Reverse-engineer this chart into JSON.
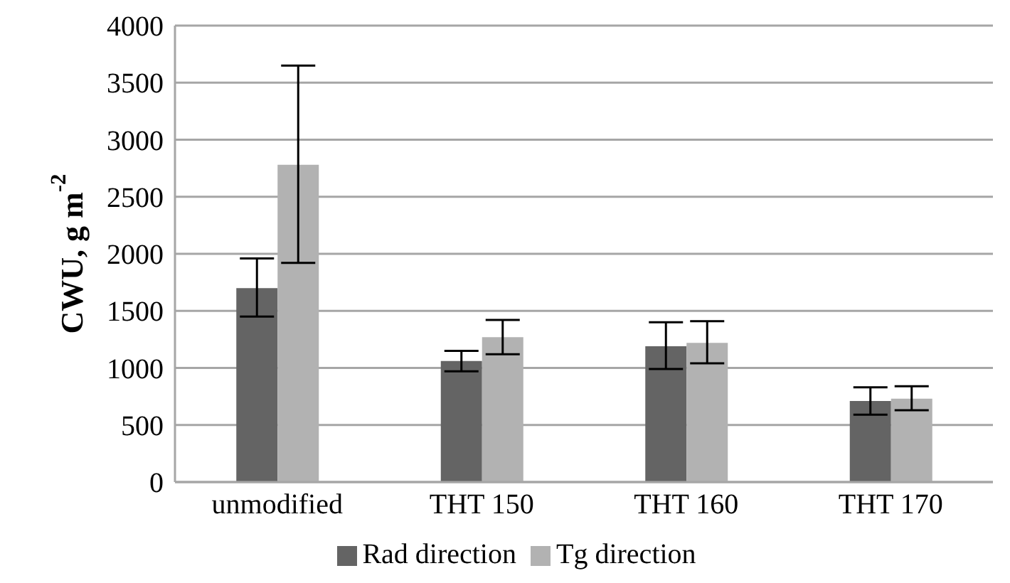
{
  "chart_data": {
    "type": "bar",
    "ylabel": "CWU, g m$^{-2}$",
    "categories": [
      "unmodified",
      "THT 150",
      "THT 160",
      "THT 170"
    ],
    "series": [
      {
        "name": "Rad direction",
        "color": "#646464",
        "values": [
          1700,
          1060,
          1190,
          710
        ],
        "errors": [
          [
            1450,
            1960
          ],
          [
            970,
            1150
          ],
          [
            990,
            1400
          ],
          [
            590,
            830
          ]
        ]
      },
      {
        "name": "Tg direction",
        "color": "#b2b2b2",
        "values": [
          2780,
          1270,
          1220,
          730
        ],
        "errors": [
          [
            1920,
            3650
          ],
          [
            1120,
            1420
          ],
          [
            1040,
            1410
          ],
          [
            630,
            840
          ]
        ]
      }
    ],
    "ylim": [
      0,
      4000
    ],
    "yticks": [
      0,
      500,
      1000,
      1500,
      2000,
      2500,
      3000,
      3500,
      4000
    ],
    "grid": "y",
    "legend": "bottom"
  }
}
